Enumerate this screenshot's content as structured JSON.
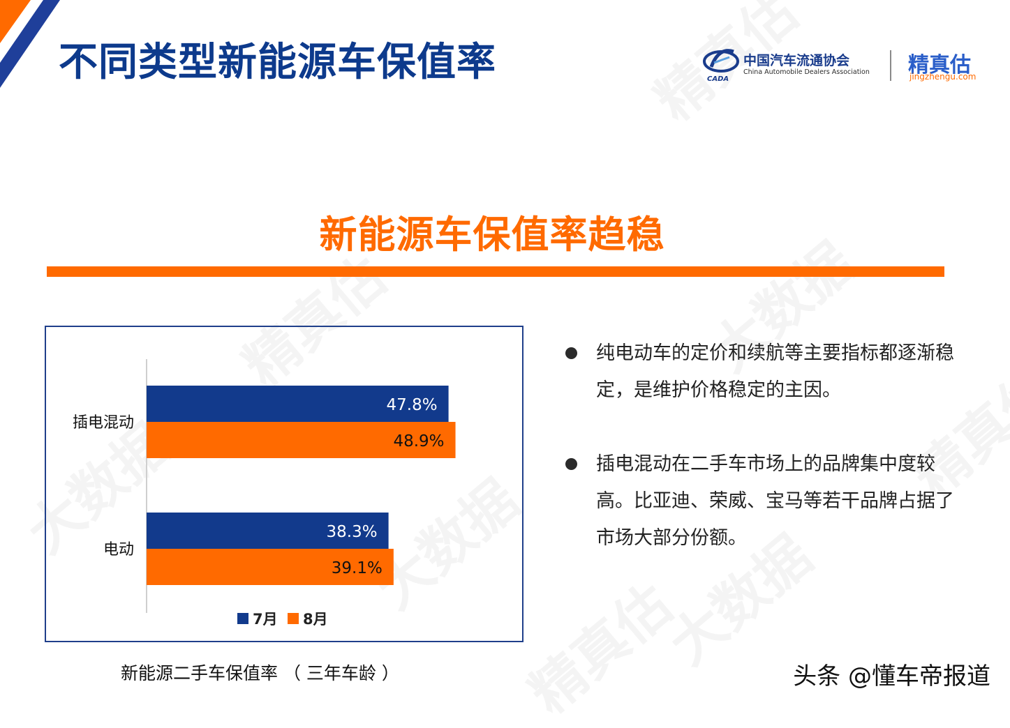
{
  "header": {
    "title": "不同类型新能源车保值率",
    "association_cn": "中国汽车流通协会",
    "association_en": "China Automobile Dealers Association",
    "association_short": "CADA",
    "brand_cn": "精真估",
    "brand_url": "jingzhengu.com"
  },
  "subtitle": "新能源车保值率趋稳",
  "chart_caption": "新能源二手车保值率 （ 三年车龄 ）",
  "bullets": [
    "纯电动车的定价和续航等主要指标都逐渐稳定，是维护价格稳定的主因。",
    "插电混动在二手车市场上的品牌集中度较高。比亚迪、荣威、宝马等若干品牌占据了市场大部分份额。"
  ],
  "source": "头条 @懂车帝报道",
  "watermarks": [
    "精真估",
    "大数据",
    "jingzhengu.com"
  ],
  "colors": {
    "title_blue": "#0d3a8c",
    "accent_orange": "#ff6a00",
    "series_july": "#123a8c",
    "series_august": "#ff6a00"
  },
  "chart_data": {
    "type": "bar",
    "orientation": "horizontal",
    "categories": [
      "插电混动",
      "电动"
    ],
    "series": [
      {
        "name": "7月",
        "values": [
          47.8,
          38.3
        ],
        "labels": [
          "47.8%",
          "38.3%"
        ],
        "color": "#123a8c"
      },
      {
        "name": "8月",
        "values": [
          48.9,
          39.1
        ],
        "labels": [
          "48.9%",
          "39.1%"
        ],
        "color": "#ff6a00"
      }
    ],
    "unit": "%",
    "xlim": [
      0,
      100
    ],
    "grid": false,
    "legend_position": "bottom"
  }
}
